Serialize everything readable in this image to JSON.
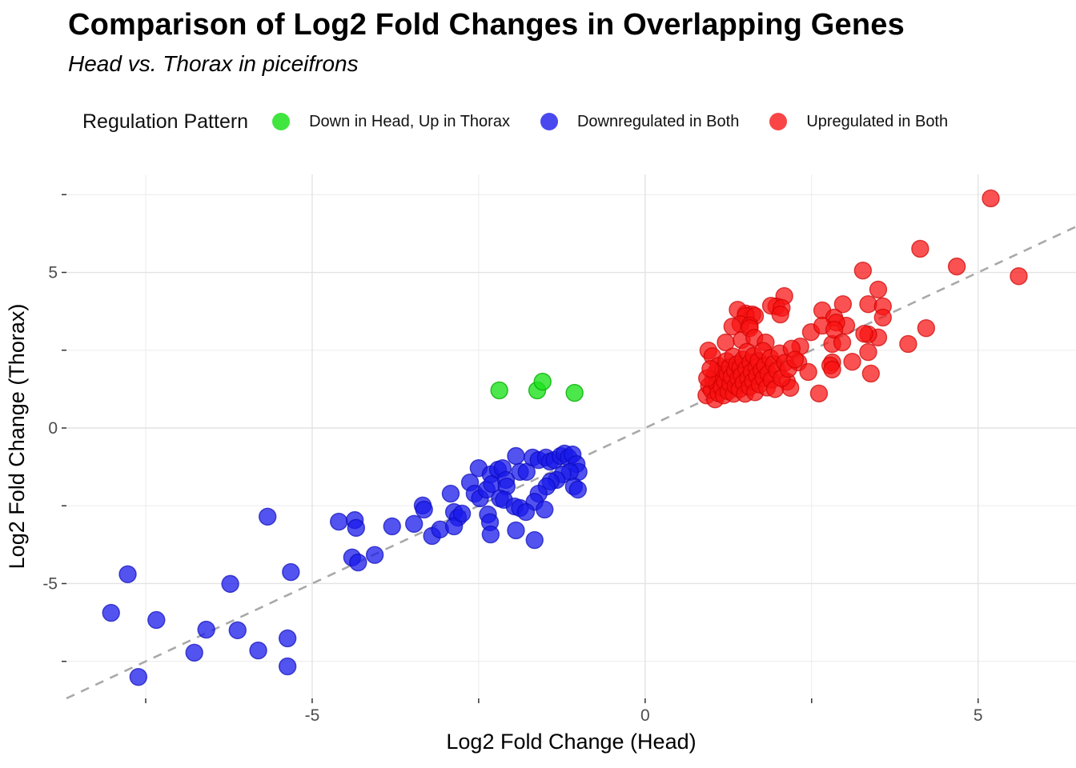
{
  "header": {
    "title": "Comparison of Log2 Fold Changes in Overlapping Genes",
    "subtitle": "Head vs. Thorax in piceifrons"
  },
  "legend": {
    "title": "Regulation Pattern",
    "items": [
      {
        "label": "Down in Head, Up in Thorax",
        "color": "rgba(30,225,30,0.85)"
      },
      {
        "label": "Downregulated in Both",
        "color": "rgba(28,28,235,0.8)"
      },
      {
        "label": "Upregulated in Both",
        "color": "rgba(248,28,28,0.82)"
      }
    ]
  },
  "chart_data": {
    "type": "scatter",
    "title": "Comparison of Log2 Fold Changes in Overlapping Genes",
    "subtitle": "Head vs. Thorax in piceifrons",
    "xlabel": "Log2 Fold Change (Head)",
    "ylabel": "Log2 Fold Change (Thorax)",
    "x_range": [
      -8.69,
      6.47
    ],
    "y_range": [
      -8.69,
      8.15
    ],
    "x_ticks": [
      -5,
      0,
      5
    ],
    "x_minor_ticks": [
      -7.5,
      -2.5,
      2.5
    ],
    "y_ticks": [
      -5,
      0,
      5
    ],
    "y_minor_ticks": [
      -7.5,
      -2.5,
      2.5,
      7.5
    ],
    "grid": true,
    "colors": {
      "major_grid": "#e3e3e3",
      "minor_grid": "#ededed",
      "tick_mark": "#333333",
      "tick_label": "#4d4d4d",
      "axis_title": "#000000",
      "identity_line": "#a9a9a9"
    },
    "identity_line": {
      "equation": "y = x",
      "style": "dashed",
      "color": "#a9a9a9"
    },
    "series": [
      {
        "name": "Down in Head, Up in Thorax",
        "color": "rgba(30,225,30,0.8)",
        "stroke": "rgba(0,175,0,0.8)",
        "points": [
          [
            -2.19,
            1.21
          ],
          [
            -1.62,
            1.21
          ],
          [
            -1.54,
            1.49
          ],
          [
            -1.06,
            1.13
          ]
        ]
      },
      {
        "name": "Downregulated in Both",
        "color": "rgba(25,25,235,0.75)",
        "stroke": "rgba(10,10,185,0.7)",
        "points": [
          [
            -7.77,
            -4.7
          ],
          [
            -8.02,
            -5.94
          ],
          [
            -7.34,
            -6.17
          ],
          [
            -7.61,
            -8.0
          ],
          [
            -6.23,
            -5.01
          ],
          [
            -6.59,
            -6.48
          ],
          [
            -6.12,
            -6.5
          ],
          [
            -6.77,
            -7.22
          ],
          [
            -5.81,
            -7.15
          ],
          [
            -5.32,
            -4.63
          ],
          [
            -5.37,
            -6.76
          ],
          [
            -5.37,
            -7.66
          ],
          [
            -5.67,
            -2.85
          ],
          [
            -4.6,
            -3.01
          ],
          [
            -4.36,
            -2.96
          ],
          [
            -4.34,
            -3.21
          ],
          [
            -4.4,
            -4.16
          ],
          [
            -4.31,
            -4.32
          ],
          [
            -4.06,
            -4.08
          ],
          [
            -3.8,
            -3.16
          ],
          [
            -3.47,
            -3.08
          ],
          [
            -3.34,
            -2.49
          ],
          [
            -3.32,
            -2.62
          ],
          [
            -3.2,
            -3.47
          ],
          [
            -3.08,
            -3.26
          ],
          [
            -2.92,
            -2.11
          ],
          [
            -2.87,
            -2.7
          ],
          [
            -2.81,
            -2.88
          ],
          [
            -2.87,
            -3.16
          ],
          [
            -2.75,
            -2.75
          ],
          [
            -2.63,
            -1.75
          ],
          [
            -2.5,
            -1.29
          ],
          [
            -2.56,
            -2.11
          ],
          [
            -2.48,
            -2.26
          ],
          [
            -2.38,
            -1.98
          ],
          [
            -2.32,
            -1.49
          ],
          [
            -2.3,
            -1.8
          ],
          [
            -2.21,
            -1.34
          ],
          [
            -2.14,
            -1.29
          ],
          [
            -2.09,
            -1.67
          ],
          [
            -2.08,
            -1.88
          ],
          [
            -2.18,
            -2.26
          ],
          [
            -2.12,
            -2.31
          ],
          [
            -2.36,
            -2.78
          ],
          [
            -2.33,
            -3.03
          ],
          [
            -2.32,
            -3.42
          ],
          [
            -1.94,
            -0.9
          ],
          [
            -1.88,
            -1.41
          ],
          [
            -1.78,
            -1.41
          ],
          [
            -1.69,
            -0.95
          ],
          [
            -1.6,
            -1.03
          ],
          [
            -1.49,
            -0.95
          ],
          [
            -1.43,
            -1.08
          ],
          [
            -1.36,
            -1.03
          ],
          [
            -1.27,
            -0.9
          ],
          [
            -1.21,
            -0.82
          ],
          [
            -1.15,
            -0.95
          ],
          [
            -1.09,
            -0.85
          ],
          [
            -1.03,
            -1.16
          ],
          [
            -1.0,
            -1.41
          ],
          [
            -1.13,
            -1.41
          ],
          [
            -1.24,
            -1.49
          ],
          [
            -1.33,
            -1.67
          ],
          [
            -1.42,
            -1.72
          ],
          [
            -1.48,
            -1.88
          ],
          [
            -1.07,
            -1.88
          ],
          [
            -1.01,
            -1.98
          ],
          [
            -1.6,
            -2.11
          ],
          [
            -1.66,
            -2.37
          ],
          [
            -1.96,
            -2.52
          ],
          [
            -1.88,
            -2.57
          ],
          [
            -1.79,
            -2.7
          ],
          [
            -1.51,
            -2.62
          ],
          [
            -1.94,
            -3.29
          ],
          [
            -1.66,
            -3.6
          ]
        ]
      },
      {
        "name": "Upregulated in Both",
        "color": "rgba(248,18,18,0.73)",
        "stroke": "rgba(205,0,0,0.7)",
        "points": [
          [
            5.19,
            7.38
          ],
          [
            4.13,
            5.76
          ],
          [
            4.68,
            5.19
          ],
          [
            5.61,
            4.88
          ],
          [
            3.27,
            5.06
          ],
          [
            3.5,
            4.45
          ],
          [
            2.09,
            4.24
          ],
          [
            1.97,
            3.91
          ],
          [
            1.89,
            3.93
          ],
          [
            2.05,
            3.86
          ],
          [
            2.03,
            3.65
          ],
          [
            1.51,
            3.68
          ],
          [
            1.61,
            3.65
          ],
          [
            2.66,
            3.78
          ],
          [
            2.97,
            3.98
          ],
          [
            3.35,
            3.98
          ],
          [
            3.57,
            3.91
          ],
          [
            2.84,
            3.55
          ],
          [
            3.57,
            3.55
          ],
          [
            4.22,
            3.21
          ],
          [
            3.95,
            2.7
          ],
          [
            3.5,
            2.91
          ],
          [
            3.35,
            3.01
          ],
          [
            3.29,
            3.03
          ],
          [
            3.02,
            3.29
          ],
          [
            2.87,
            3.39
          ],
          [
            2.81,
            2.7
          ],
          [
            3.35,
            2.44
          ],
          [
            3.11,
            2.13
          ],
          [
            2.81,
            2.11
          ],
          [
            3.39,
            1.75
          ],
          [
            2.61,
            1.11
          ],
          [
            1.39,
            3.8
          ],
          [
            1.51,
            3.6
          ],
          [
            1.65,
            3.6
          ],
          [
            1.43,
            3.34
          ],
          [
            1.57,
            3.29
          ],
          [
            1.31,
            3.26
          ],
          [
            0.95,
            2.49
          ],
          [
            1.01,
            2.31
          ],
          [
            2.33,
            2.62
          ],
          [
            2.49,
            3.08
          ],
          [
            2.66,
            3.29
          ],
          [
            2.84,
            3.16
          ],
          [
            2.96,
            2.75
          ],
          [
            2.3,
            2.11
          ],
          [
            2.45,
            1.8
          ],
          [
            2.78,
            2.01
          ],
          [
            2.81,
            1.88
          ],
          [
            2.13,
            1.49
          ],
          [
            2.18,
            1.29
          ],
          [
            1.21,
            2.75
          ],
          [
            1.45,
            2.83
          ],
          [
            1.57,
            3.21
          ],
          [
            1.64,
            2.9
          ],
          [
            1.81,
            2.75
          ],
          [
            0.92,
            1.05
          ],
          [
            0.96,
            1.35
          ],
          [
            1.0,
            1.22
          ],
          [
            1.02,
            1.55
          ],
          [
            1.05,
            0.92
          ],
          [
            1.05,
            1.75
          ],
          [
            1.08,
            1.4
          ],
          [
            1.1,
            1.12
          ],
          [
            1.1,
            2.0
          ],
          [
            1.13,
            1.62
          ],
          [
            1.15,
            1.3
          ],
          [
            1.17,
            1.88
          ],
          [
            1.18,
            1.05
          ],
          [
            1.2,
            1.5
          ],
          [
            1.22,
            2.15
          ],
          [
            1.24,
            1.72
          ],
          [
            1.25,
            1.18
          ],
          [
            1.27,
            1.95
          ],
          [
            1.28,
            1.42
          ],
          [
            1.3,
            1.65
          ],
          [
            1.32,
            2.3
          ],
          [
            1.33,
            1.1
          ],
          [
            1.35,
            1.85
          ],
          [
            1.36,
            1.35
          ],
          [
            1.38,
            2.05
          ],
          [
            1.4,
            1.58
          ],
          [
            1.42,
            1.25
          ],
          [
            1.43,
            1.95
          ],
          [
            1.45,
            1.7
          ],
          [
            1.47,
            2.2
          ],
          [
            1.48,
            1.45
          ],
          [
            1.5,
            1.1
          ],
          [
            1.52,
            1.9
          ],
          [
            1.53,
            2.45
          ],
          [
            1.55,
            1.6
          ],
          [
            1.57,
            1.32
          ],
          [
            1.58,
            2.1
          ],
          [
            1.6,
            1.8
          ],
          [
            1.62,
            1.5
          ],
          [
            1.63,
            2.32
          ],
          [
            1.65,
            1.15
          ],
          [
            1.67,
            1.95
          ],
          [
            1.68,
            1.68
          ],
          [
            1.7,
            2.15
          ],
          [
            1.72,
            1.4
          ],
          [
            1.75,
            1.85
          ],
          [
            1.77,
            2.48
          ],
          [
            1.78,
            1.6
          ],
          [
            1.8,
            2.0
          ],
          [
            1.83,
            1.3
          ],
          [
            1.85,
            1.75
          ],
          [
            1.88,
            2.25
          ],
          [
            1.9,
            1.55
          ],
          [
            1.93,
            2.05
          ],
          [
            1.95,
            1.25
          ],
          [
            1.98,
            1.85
          ],
          [
            2.02,
            2.4
          ],
          [
            2.05,
            1.6
          ],
          [
            2.1,
            2.1
          ],
          [
            2.15,
            1.9
          ],
          [
            2.2,
            2.55
          ],
          [
            2.25,
            2.2
          ],
          [
            0.93,
            1.6
          ],
          [
            0.98,
            1.9
          ]
        ]
      }
    ]
  }
}
